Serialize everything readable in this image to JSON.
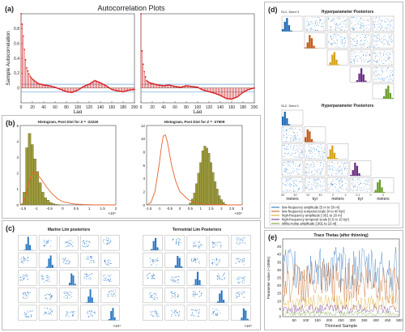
{
  "panel_labels": {
    "a": "(a)",
    "b": "(b)",
    "c": "(c)",
    "d": "(d)",
    "e": "(e)"
  },
  "chart_data": [
    {
      "id": "a",
      "type": "line",
      "title": "Autocorrelation Plots",
      "xlabel": "Lag",
      "ylabel": "Sample Autocorrelation",
      "xlim": [
        0,
        200
      ],
      "ylim": [
        -0.2,
        1.0
      ],
      "xticks": [
        0,
        20,
        40,
        60,
        80,
        100,
        120,
        140,
        160,
        180,
        200
      ],
      "yticks": [
        0,
        0.2,
        0.4,
        0.6,
        0.8
      ],
      "confidence_bounds": [
        -0.05,
        0.05
      ],
      "subplots": [
        {
          "x": [
            0,
            2,
            4,
            6,
            8,
            10,
            15,
            20,
            25,
            30,
            40,
            50,
            60,
            70,
            80,
            90,
            100,
            110,
            120,
            130,
            140,
            150,
            160,
            170,
            180,
            190,
            200
          ],
          "y": [
            1.0,
            0.86,
            0.7,
            0.52,
            0.38,
            0.27,
            0.17,
            0.12,
            0.09,
            0.06,
            0.04,
            0.03,
            0.01,
            -0.02,
            -0.05,
            -0.06,
            -0.03,
            0.02,
            0.05,
            0.1,
            0.07,
            0.03,
            -0.02,
            -0.04,
            -0.05,
            -0.03,
            -0.02
          ]
        },
        {
          "x": [
            0,
            2,
            4,
            6,
            8,
            10,
            15,
            20,
            25,
            30,
            40,
            50,
            60,
            70,
            80,
            90,
            100,
            110,
            120,
            130,
            140,
            150,
            160,
            170,
            180,
            190,
            200
          ],
          "y": [
            1.0,
            0.5,
            0.32,
            0.22,
            0.15,
            0.1,
            0.07,
            0.06,
            0.05,
            0.04,
            0.03,
            0.04,
            0.02,
            0.01,
            0.03,
            0.02,
            0.01,
            -0.03,
            -0.05,
            -0.07,
            -0.1,
            -0.14,
            -0.15,
            -0.12,
            -0.06,
            -0.02,
            0.0
          ]
        }
      ]
    },
    {
      "id": "b",
      "type": "bar",
      "series_line_color": "#e8622c",
      "bar_color": "#9c9a3c",
      "subplots": [
        {
          "title": "Histogram, Post Dist for Z = -22240",
          "xlim": [
            -1.6,
            2.0
          ],
          "ylim": [
            0,
            5
          ],
          "xticks": [
            -1.5,
            -1,
            -0.5,
            0,
            0.5,
            1,
            1.5,
            2
          ],
          "yticks": [
            0,
            1,
            2,
            3,
            4,
            5
          ],
          "x_exponent": "×10⁴",
          "bins": [
            -1.55,
            -1.45,
            -1.35,
            -1.25,
            -1.15,
            -1.05,
            -0.95,
            -0.85,
            -0.75,
            -0.65,
            -0.55,
            -0.45,
            -0.35,
            -0.25,
            -0.15
          ],
          "values": [
            0.05,
            0.8,
            3.6,
            4.5,
            3.8,
            2.9,
            2.1,
            1.4,
            0.8,
            0.45,
            0.3,
            0.15,
            0.08,
            0.04,
            0.02
          ],
          "curve_x": [
            -1.6,
            -1.5,
            -1.4,
            -1.3,
            -1.2,
            -1.1,
            -1.0,
            -0.8,
            -0.6,
            -0.4,
            -0.2,
            0.0,
            0.4,
            0.8,
            1.2,
            1.6,
            2.0
          ],
          "curve_y": [
            0.0,
            0.1,
            0.5,
            1.2,
            1.8,
            2.1,
            2.0,
            1.6,
            1.1,
            0.7,
            0.4,
            0.2,
            0.06,
            0.02,
            0.0,
            0.0,
            0.0
          ]
        },
        {
          "title": "Histogram, Post Dist for Z = -27909",
          "xlim": [
            -1.6,
            3.0
          ],
          "ylim": [
            0,
            12
          ],
          "xticks": [
            -1.5,
            -1,
            -0.5,
            0,
            0.5,
            1,
            1.5,
            2,
            2.5,
            3
          ],
          "yticks": [
            0,
            2,
            4,
            6,
            8,
            10,
            12
          ],
          "x_exponent": "×10⁴",
          "bins": [
            0.5,
            0.6,
            0.7,
            0.8,
            0.9,
            1.0,
            1.1,
            1.2,
            1.3,
            1.4,
            1.5,
            1.6,
            1.7,
            1.8,
            1.9,
            2.0,
            2.1,
            2.2
          ],
          "values": [
            0.3,
            0.9,
            1.8,
            3.2,
            4.8,
            6.4,
            8.2,
            8.9,
            8.6,
            7.8,
            6.4,
            4.9,
            3.5,
            2.4,
            1.4,
            0.8,
            0.4,
            0.1
          ],
          "curve_x": [
            -1.6,
            -1.4,
            -1.2,
            -1.0,
            -0.9,
            -0.8,
            -0.7,
            -0.6,
            -0.5,
            -0.4,
            -0.2,
            0.0,
            0.4,
            0.8,
            1.2,
            2.0,
            3.0
          ],
          "curve_y": [
            0.0,
            0.3,
            2.0,
            6.0,
            8.5,
            10.4,
            10.6,
            9.5,
            7.8,
            6.0,
            3.6,
            2.0,
            0.8,
            0.3,
            0.1,
            0.0,
            0.0
          ]
        }
      ]
    },
    {
      "id": "c",
      "type": "scatter",
      "grid": "5x5 pair plot",
      "point_color": "#2b78c2",
      "subplots": [
        {
          "title": "Marine Lim posteriors",
          "x_exponent": "×10⁴"
        },
        {
          "title": "Terrestrial Lim Posteriors",
          "x_exponent": "×10⁴"
        }
      ]
    },
    {
      "id": "d",
      "type": "scatter",
      "grid": "5x5 pair plot",
      "diag_colors": [
        "#1f6bb5",
        "#c55a16",
        "#d4a21a",
        "#6a2c82",
        "#6b9d2a"
      ],
      "subplots": [
        {
          "title": "Hyperparameter Posteriors",
          "label": "SL1, Seed 3"
        },
        {
          "title": "Hyperparameter Posteriors",
          "label": "SL2, Seed 1"
        }
      ],
      "x_unit_labels": [
        "meters",
        "kyr",
        "meters",
        "kyr",
        "meters"
      ],
      "x_ticks_sample": [
        "30",
        "40",
        "10",
        "40",
        "2",
        "4",
        "0.1",
        "0",
        "0"
      ],
      "legend": [
        {
          "label": "low-frequency amplitude [5 m to 50 m]",
          "color": "#1f6bb5"
        },
        {
          "label": "low-frequency temporal scale [4 to 40 kyr]",
          "color": "#c55a16"
        },
        {
          "label": "high-frequency amplitude [.001 to 20 m]",
          "color": "#d4a21a"
        },
        {
          "label": "high-frequency temporal scale [0.5 to 10 kyr]",
          "color": "#6a2c82"
        },
        {
          "label": "white-noise amplitude [.001 to 10 m]",
          "color": "#6b9d2a"
        }
      ]
    },
    {
      "id": "e",
      "type": "line",
      "title": "Trace Thetas (after thinning)",
      "xlabel": "Thinned Sample",
      "ylabel": "Parameter value (~1000s)",
      "xlim": [
        1,
        500
      ],
      "ylim": [
        0,
        50
      ],
      "xticks": [
        50,
        100,
        150,
        200,
        250,
        300,
        350,
        400,
        450,
        500
      ],
      "yticks": [
        0,
        5,
        10,
        15,
        20,
        25,
        30,
        35,
        40,
        45
      ],
      "series": [
        {
          "name": "low-frequency amplitude [5 m to 50 m]",
          "color": "#1f6bb5",
          "mean": 30,
          "amp": 15
        },
        {
          "name": "low-frequency temporal scale [4 to 40 kyr]",
          "color": "#c55a16",
          "mean": 22,
          "amp": 14
        },
        {
          "name": "high-frequency amplitude [.001 to 20 m]",
          "color": "#d4a21a",
          "mean": 9,
          "amp": 5
        },
        {
          "name": "high-frequency temporal scale [0.5 to 10 kyr]",
          "color": "#6a2c82",
          "mean": 5,
          "amp": 3
        },
        {
          "name": "white-noise amplitude [.001 to 10 m]",
          "color": "#6b9d2a",
          "mean": 2,
          "amp": 1.5
        }
      ]
    }
  ]
}
